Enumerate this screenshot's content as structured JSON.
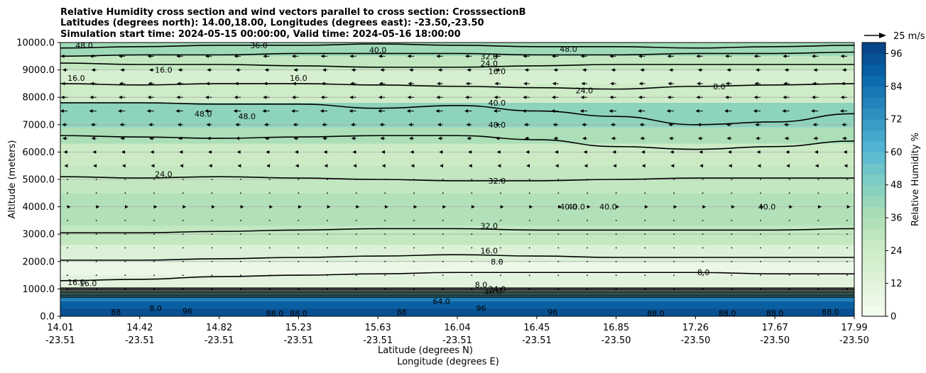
{
  "chart_data": {
    "type": "contour",
    "title_lines": [
      "Relative Humidity cross section and wind vectors parallel to cross section: CrosssectionB",
      "Latitudes (degrees north): 14.00,18.00, Longitudes (degrees east): -23.50,-23.50",
      "Simulation start time: 2024-05-15 00:00:00, Valid time: 2024-05-16 18:00:00"
    ],
    "ylabel": "Altitude (meters)",
    "xlabel_lat": "Latitude (degrees N)",
    "xlabel_lon": "Longitude (degrees E)",
    "ylim": [
      0,
      10000
    ],
    "y_ticks": [
      "0.0",
      "1000.0",
      "2000.0",
      "3000.0",
      "4000.0",
      "5000.0",
      "6000.0",
      "7000.0",
      "8000.0",
      "9000.0",
      "10000.0"
    ],
    "x_ticks": [
      {
        "lat": "14.01",
        "lon": "-23.51"
      },
      {
        "lat": "14.42",
        "lon": "-23.51"
      },
      {
        "lat": "14.82",
        "lon": "-23.51"
      },
      {
        "lat": "15.23",
        "lon": "-23.51"
      },
      {
        "lat": "15.63",
        "lon": "-23.51"
      },
      {
        "lat": "16.04",
        "lon": "-23.51"
      },
      {
        "lat": "16.45",
        "lon": "-23.51"
      },
      {
        "lat": "16.85",
        "lon": "-23.50"
      },
      {
        "lat": "17.26",
        "lon": "-23.50"
      },
      {
        "lat": "17.67",
        "lon": "-23.50"
      },
      {
        "lat": "17.99",
        "lon": "-23.50"
      }
    ],
    "grid": "horizontal",
    "colorbar": {
      "label": "Relative Humidity %",
      "range": [
        0,
        100
      ],
      "ticks": [
        "0",
        "12",
        "24",
        "36",
        "48",
        "60",
        "72",
        "84",
        "96"
      ],
      "colormap": "GnBu",
      "colors": [
        "#f7fcf0",
        "#e0f3db",
        "#ccebc5",
        "#a8ddb5",
        "#7bccc4",
        "#4eb3d3",
        "#2b8cbe",
        "#0868ac",
        "#084081"
      ]
    },
    "quiver_key": {
      "label": "25 m/s",
      "value_ms": 25
    },
    "bands": [
      {
        "z0": 0,
        "z1": 300,
        "rh": 95
      },
      {
        "z0": 300,
        "z1": 550,
        "rh": 90
      },
      {
        "z0": 550,
        "z1": 700,
        "rh": 80
      },
      {
        "z0": 700,
        "z1": 850,
        "rh": 55
      },
      {
        "z0": 850,
        "z1": 1050,
        "rh": 30
      },
      {
        "z0": 1050,
        "z1": 1500,
        "rh": 12
      },
      {
        "z0": 1500,
        "z1": 2000,
        "rh": 6
      },
      {
        "z0": 2000,
        "z1": 2600,
        "rh": 15
      },
      {
        "z0": 2600,
        "z1": 3300,
        "rh": 28
      },
      {
        "z0": 3300,
        "z1": 4500,
        "rh": 34
      },
      {
        "z0": 4500,
        "z1": 5500,
        "rh": 28
      },
      {
        "z0": 5500,
        "z1": 6300,
        "rh": 25
      },
      {
        "z0": 6300,
        "z1": 6900,
        "rh": 36
      },
      {
        "z0": 6900,
        "z1": 7800,
        "rh": 45
      },
      {
        "z0": 7800,
        "z1": 8500,
        "rh": 24
      },
      {
        "z0": 8500,
        "z1": 9000,
        "rh": 18
      },
      {
        "z0": 9000,
        "z1": 9500,
        "rh": 28
      },
      {
        "z0": 9500,
        "z1": 10000,
        "rh": 40
      }
    ],
    "contours": [
      {
        "label": "8.0",
        "z": [
          1300,
          1350,
          1450,
          1500,
          1550,
          1600,
          1600,
          1600,
          1600,
          1550,
          1550
        ]
      },
      {
        "label": "16.0",
        "z": [
          2050,
          2050,
          2100,
          2150,
          2200,
          2250,
          2200,
          2150,
          2150,
          2150,
          2150
        ]
      },
      {
        "label": "32.0",
        "z": [
          3050,
          3050,
          3100,
          3150,
          3200,
          3200,
          3150,
          3150,
          3150,
          3150,
          3200
        ]
      },
      {
        "label": "32.0",
        "z": [
          5100,
          5050,
          5100,
          5050,
          5000,
          4950,
          4950,
          5000,
          5050,
          5050,
          5050
        ]
      },
      {
        "label": "40.0",
        "z": [
          6600,
          6550,
          6500,
          6550,
          6600,
          6600,
          6450,
          6200,
          6100,
          6200,
          6400
        ]
      },
      {
        "label": "40.0",
        "z": [
          7800,
          7800,
          7750,
          7750,
          7600,
          7700,
          7500,
          7300,
          7000,
          7100,
          7400
        ]
      },
      {
        "label": "24.0",
        "z": [
          8500,
          8450,
          8500,
          8500,
          8450,
          8400,
          8350,
          8300,
          8400,
          8450,
          8500
        ]
      },
      {
        "label": "16.0",
        "z": [
          9250,
          9200,
          9200,
          9150,
          9100,
          9100,
          9150,
          9200,
          9200,
          9200,
          9200
        ]
      },
      {
        "label": "32.0",
        "z": [
          9500,
          9550,
          9550,
          9600,
          9600,
          9600,
          9550,
          9550,
          9600,
          9600,
          9650
        ]
      },
      {
        "label": "48.0",
        "z": [
          9800,
          9850,
          9900,
          9900,
          9950,
          9900,
          9850,
          9850,
          9800,
          9850,
          9900
        ]
      }
    ],
    "contour_labels": [
      {
        "text": "48.0",
        "lat_idx": 0.3,
        "z": 9900
      },
      {
        "text": "36.0",
        "lat_idx": 2.5,
        "z": 9900
      },
      {
        "text": "40.0",
        "lat_idx": 4.0,
        "z": 9730
      },
      {
        "text": "48.0",
        "lat_idx": 6.4,
        "z": 9770
      },
      {
        "text": "32.0",
        "lat_idx": 5.4,
        "z": 9500
      },
      {
        "text": "24.0",
        "lat_idx": 5.4,
        "z": 9230
      },
      {
        "text": "16.0",
        "lat_idx": 5.5,
        "z": 8950
      },
      {
        "text": "16.0",
        "lat_idx": 0.2,
        "z": 8700
      },
      {
        "text": "16.0",
        "lat_idx": 1.3,
        "z": 9000
      },
      {
        "text": "16.0",
        "lat_idx": 3.0,
        "z": 8700
      },
      {
        "text": "24.0",
        "lat_idx": 6.6,
        "z": 8250
      },
      {
        "text": "8.0",
        "lat_idx": 8.3,
        "z": 8400
      },
      {
        "text": "40.0",
        "lat_idx": 5.5,
        "z": 7800
      },
      {
        "text": "48.0",
        "lat_idx": 1.8,
        "z": 7400
      },
      {
        "text": "48.0",
        "lat_idx": 2.35,
        "z": 7300
      },
      {
        "text": "40.0",
        "lat_idx": 5.5,
        "z": 7000
      },
      {
        "text": "24.0",
        "lat_idx": 1.3,
        "z": 5200
      },
      {
        "text": "32.0",
        "lat_idx": 5.5,
        "z": 4950
      },
      {
        "text": "40.0",
        "lat_idx": 6.5,
        "z": 4000
      },
      {
        "text": "40.0",
        "lat_idx": 6.4,
        "z": 4000
      },
      {
        "text": "40.0",
        "lat_idx": 6.9,
        "z": 4000
      },
      {
        "text": "40.0",
        "lat_idx": 8.9,
        "z": 4000
      },
      {
        "text": "40.0",
        "lat_idx": 10.45,
        "z": 4300
      },
      {
        "text": "32.0",
        "lat_idx": 5.4,
        "z": 3300
      },
      {
        "text": "16.0",
        "lat_idx": 5.4,
        "z": 2400
      },
      {
        "text": "8.0",
        "lat_idx": 5.5,
        "z": 2000
      },
      {
        "text": "8.0",
        "lat_idx": 8.1,
        "z": 1600
      },
      {
        "text": "16.0",
        "lat_idx": 0.2,
        "z": 1250
      },
      {
        "text": "16.0",
        "lat_idx": 0.35,
        "z": 1200
      },
      {
        "text": "8.0",
        "lat_idx": 5.3,
        "z": 1150
      },
      {
        "text": "24.0",
        "lat_idx": 5.5,
        "z": 1000
      },
      {
        "text": "48.0",
        "lat_idx": 5.45,
        "z": 900
      },
      {
        "text": "64.0",
        "lat_idx": 4.8,
        "z": 550
      },
      {
        "text": "96",
        "lat_idx": 5.3,
        "z": 300
      },
      {
        "text": "88",
        "lat_idx": 0.7,
        "z": 150
      },
      {
        "text": "8.0",
        "lat_idx": 1.2,
        "z": 300
      },
      {
        "text": "96",
        "lat_idx": 1.6,
        "z": 200
      },
      {
        "text": "88.0",
        "lat_idx": 2.7,
        "z": 100
      },
      {
        "text": "88.0",
        "lat_idx": 3.0,
        "z": 100
      },
      {
        "text": "88",
        "lat_idx": 4.3,
        "z": 150
      },
      {
        "text": "96",
        "lat_idx": 6.2,
        "z": 150
      },
      {
        "text": "88.0",
        "lat_idx": 7.5,
        "z": 100
      },
      {
        "text": "88.0",
        "lat_idx": 8.4,
        "z": 120
      },
      {
        "text": "88.0",
        "lat_idx": 9.0,
        "z": 120
      },
      {
        "text": "88.0",
        "lat_idx": 9.7,
        "z": 150
      },
      {
        "text": "88.0",
        "lat_idx": 10.2,
        "z": 150
      }
    ],
    "wind_rows": [
      {
        "z": 9500,
        "u": -4.0
      },
      {
        "z": 9000,
        "u": -2.5
      },
      {
        "z": 8500,
        "u": -3.5
      },
      {
        "z": 8000,
        "u": -4.0
      },
      {
        "z": 7500,
        "u": -4.5
      },
      {
        "z": 7000,
        "u": -3.0
      },
      {
        "z": 6500,
        "u": -2.5
      },
      {
        "z": 6000,
        "u": -1.5
      },
      {
        "z": 5500,
        "u": -1.0
      },
      {
        "z": 5000,
        "u": 0.4
      },
      {
        "z": 4500,
        "u": 0.8
      },
      {
        "z": 4000,
        "u": 1.0
      },
      {
        "z": 3500,
        "u": 0.8
      },
      {
        "z": 3000,
        "u": 0.5
      },
      {
        "z": 2500,
        "u": 0.3
      },
      {
        "z": 2000,
        "u": 0.2
      },
      {
        "z": 1500,
        "u": 0.2
      },
      {
        "z": 1000,
        "u": 0.3
      }
    ]
  }
}
